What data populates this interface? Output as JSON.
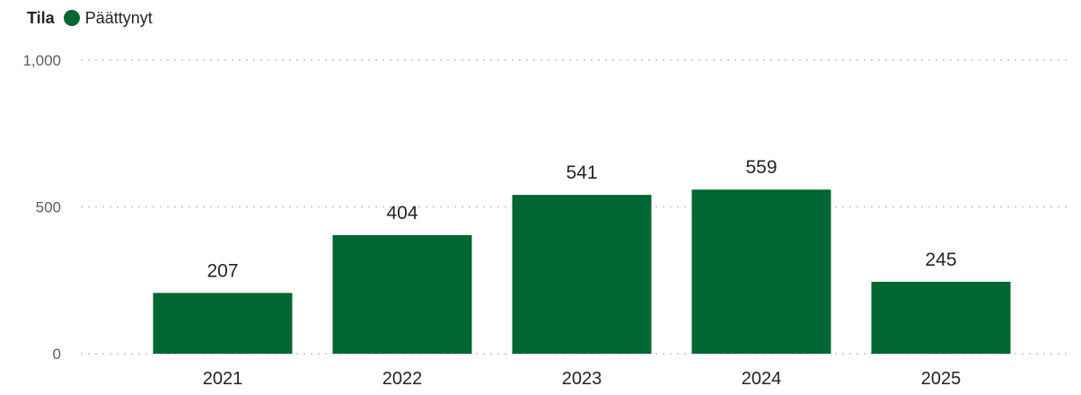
{
  "legend": {
    "title": "Tila",
    "items": [
      {
        "label": "Päättynyt",
        "color": "#006633"
      }
    ]
  },
  "chart_data": {
    "type": "bar",
    "categories": [
      "2021",
      "2022",
      "2023",
      "2024",
      "2025"
    ],
    "series": [
      {
        "name": "Päättynyt",
        "values": [
          207,
          404,
          541,
          559,
          245
        ]
      }
    ],
    "ylim": [
      0,
      1000
    ],
    "yticks": [
      "0",
      "500",
      "1,000"
    ],
    "ytick_values": [
      0,
      500,
      1000
    ],
    "grid": true,
    "data_labels": true,
    "legend_position": "top-left",
    "color": "#006633"
  }
}
